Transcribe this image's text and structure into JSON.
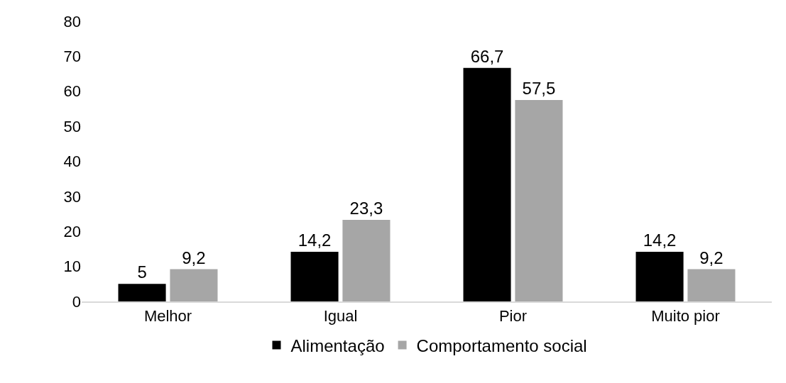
{
  "chart_data": {
    "type": "bar",
    "categories": [
      "Melhor",
      "Igual",
      "Pior",
      "Muito pior"
    ],
    "series": [
      {
        "name": "Alimentação",
        "color": "#000000",
        "values": [
          5,
          14.2,
          66.7,
          14.2
        ],
        "value_labels": [
          "5",
          "14,2",
          "66,7",
          "14,2"
        ]
      },
      {
        "name": "Comportamento social",
        "color": "#a6a6a6",
        "values": [
          9.2,
          23.3,
          57.5,
          9.2
        ],
        "value_labels": [
          "9,2",
          "23,3",
          "57,5",
          "9,2"
        ]
      }
    ],
    "ylim": [
      0,
      80
    ],
    "yticks": [
      0,
      10,
      20,
      30,
      40,
      50,
      60,
      70,
      80
    ],
    "grid": false,
    "legend": "bottom"
  }
}
